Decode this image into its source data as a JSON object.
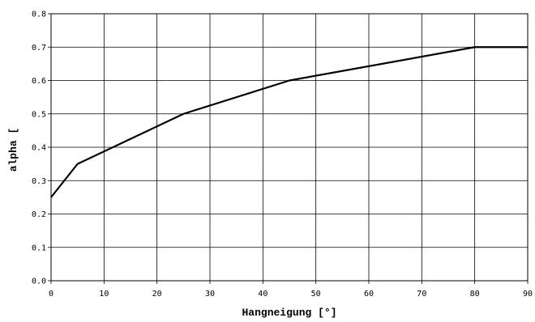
{
  "chart_data": {
    "type": "line",
    "title": "",
    "xlabel": "Hangneigung [°]",
    "ylabel": "alpha [",
    "xlim": [
      0,
      90
    ],
    "ylim": [
      0,
      0.8
    ],
    "x_ticks": [
      "0",
      "10",
      "20",
      "30",
      "40",
      "50",
      "60",
      "70",
      "80",
      "90"
    ],
    "y_ticks": [
      "0.0",
      "0.1",
      "0.2",
      "0.3",
      "0.4",
      "0.5",
      "0.6",
      "0.7",
      "0.8"
    ],
    "grid": true,
    "series": [
      {
        "x": [
          0,
          5,
          25,
          45,
          80,
          90
        ],
        "y": [
          0.25,
          0.35,
          0.5,
          0.6,
          0.7,
          0.7
        ],
        "color": "#000000"
      }
    ]
  }
}
